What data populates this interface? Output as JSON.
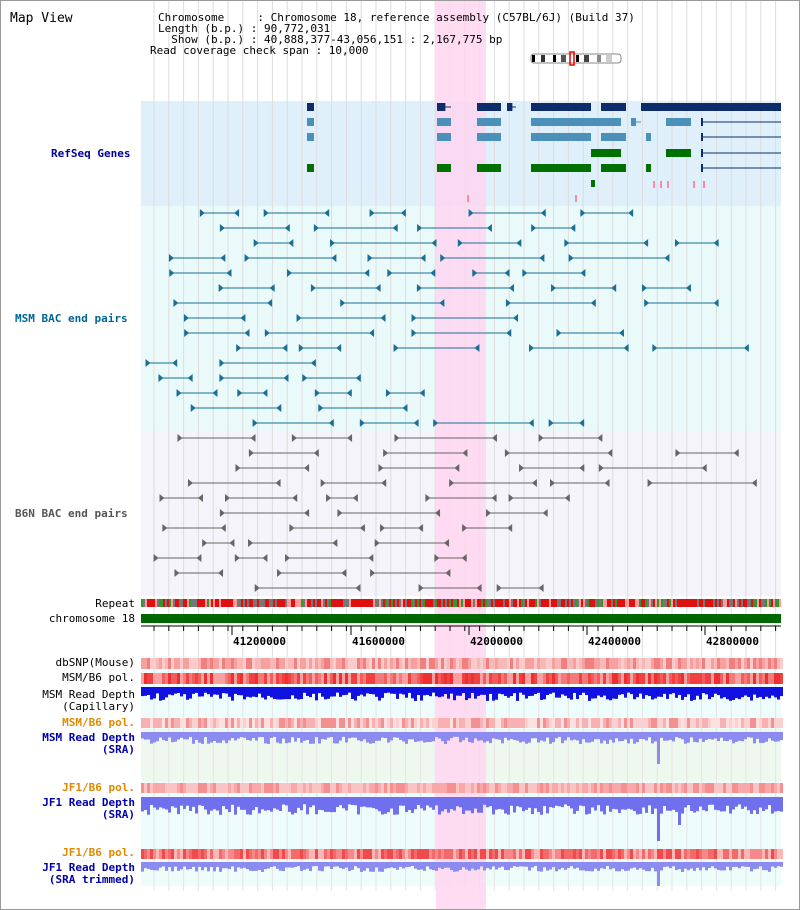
{
  "title": "Map View",
  "header": {
    "lines": [
      "Chromosome     : Chromosome 18, reference assembly (C57BL/6J) (Build 37)",
      "Length (b.p.) : 90,772,031",
      "  Show (b.p.) : 40,888,377-43,056,151 : 2,167,775 bp",
      "Read coverage check span : 10,000"
    ]
  },
  "tracks": {
    "refseq": "RefSeq Genes",
    "msm_bac": "MSM BAC end pairs",
    "b6n_bac": "B6N BAC end pairs",
    "repeat": "Repeat",
    "chromosome": "chromosome 18"
  },
  "ruler": {
    "ticks": [
      "41200000",
      "41600000",
      "42000000",
      "42400000",
      "42800000"
    ]
  },
  "rows": [
    {
      "label": "dbSNP(Mouse)",
      "color": "#333333"
    },
    {
      "label": "MSM/B6 pol.",
      "color": "#333333"
    },
    {
      "label": "MSM Read Depth\n(Capillary)",
      "color": "#333333"
    },
    {
      "label": "MSM/B6 pol.",
      "color": "#e08a00"
    },
    {
      "label": "MSM Read Depth\n(SRA)",
      "color": "#0000aa"
    },
    {
      "label": "JF1/B6 pol.",
      "color": "#e08a00"
    },
    {
      "label": "JF1 Read Depth\n(SRA)",
      "color": "#0000aa"
    },
    {
      "label": "JF1/B6 pol.",
      "color": "#e08a00"
    },
    {
      "label": "JF1 Read Depth\n(SRA trimmed)",
      "color": "#0000aa"
    }
  ],
  "colors": {
    "refseq_label": "#000099",
    "msm_label": "#006699",
    "b6n_label": "#555555",
    "highlight": "#ffd6f0",
    "chromosome_bar": "#006600"
  }
}
